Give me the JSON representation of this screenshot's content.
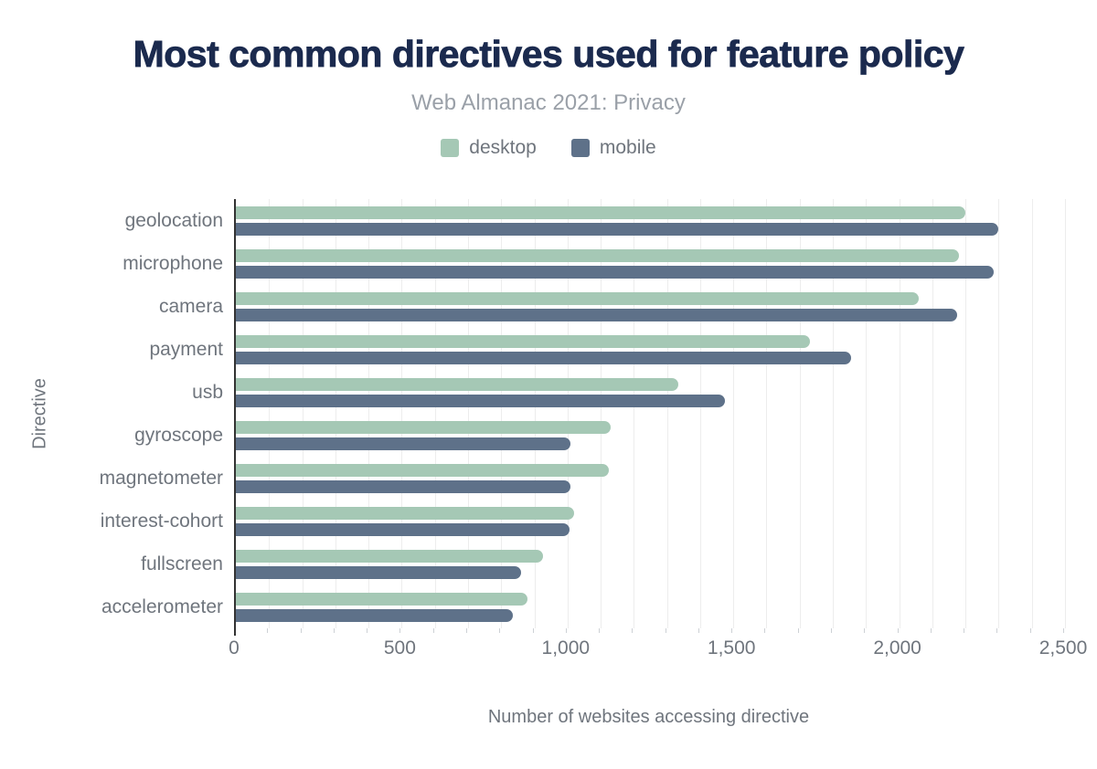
{
  "chart_data": {
    "type": "bar",
    "orientation": "horizontal",
    "title": "Most common directives used for feature policy",
    "subtitle": "Web Almanac 2021: Privacy",
    "xlabel": "Number of websites accessing directive",
    "ylabel": "Directive",
    "xlim": [
      0,
      2500
    ],
    "minor_grid_step": 100,
    "grid": true,
    "legend_position": "top",
    "x_ticks": [
      0,
      500,
      1000,
      1500,
      2000,
      2500
    ],
    "x_tick_labels": [
      "0",
      "500",
      "1,000",
      "1,500",
      "2,000",
      "2,500"
    ],
    "categories": [
      "geolocation",
      "microphone",
      "camera",
      "payment",
      "usb",
      "gyroscope",
      "magnetometer",
      "interest-cohort",
      "fullscreen",
      "accelerometer"
    ],
    "series": [
      {
        "name": "desktop",
        "color": "#a5c8b5",
        "values": [
          2200,
          2180,
          2060,
          1730,
          1335,
          1130,
          1125,
          1020,
          925,
          880
        ]
      },
      {
        "name": "mobile",
        "color": "#5e7189",
        "values": [
          2300,
          2285,
          2175,
          1855,
          1475,
          1010,
          1010,
          1005,
          860,
          835
        ]
      }
    ],
    "colors": {
      "title": "#1b2a4e",
      "subtitle": "#9aa0a8",
      "axis_text": "#6f757d",
      "axis_line": "#333333",
      "gridline": "#ededed"
    }
  }
}
